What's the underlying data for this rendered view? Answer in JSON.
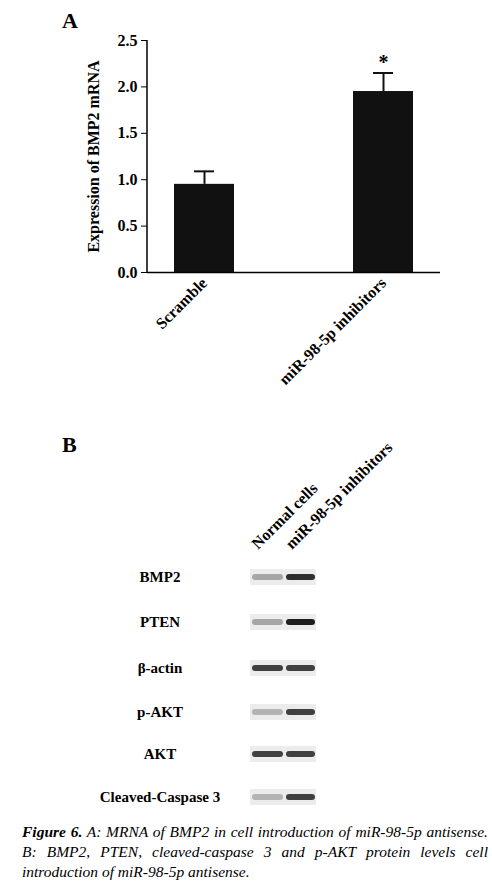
{
  "chart_data": {
    "type": "bar",
    "categories": [
      "Scramble",
      "miR-98-5p inhibitors"
    ],
    "values": [
      0.95,
      1.95
    ],
    "errors": [
      0.14,
      0.2
    ],
    "color": "#111111",
    "ylabel": "Expression of BMP2 mRNA",
    "ylim": [
      0,
      2.5
    ],
    "yticks": [
      {
        "value": 0,
        "label": "0.0"
      },
      {
        "value": 0.5,
        "label": "0.5"
      },
      {
        "value": 1,
        "label": "1.0"
      },
      {
        "value": 1.5,
        "label": "1.5"
      },
      {
        "value": 2,
        "label": "2.0"
      },
      {
        "value": 2.5,
        "label": "2.5"
      }
    ],
    "annotations": [
      {
        "category": "miR-98-5p inhibitors",
        "text": "*"
      }
    ]
  },
  "panel_labels": [
    "A",
    "B"
  ],
  "blot": {
    "lanes": [
      "Normal cells",
      "miR-98-5p inhibitors"
    ],
    "rows": [
      {
        "label": "BMP2",
        "intensity": [
          0.45,
          0.85
        ]
      },
      {
        "label": "PTEN",
        "intensity": [
          0.45,
          0.9
        ]
      },
      {
        "label": "β-actin",
        "intensity": [
          0.8,
          0.8
        ]
      },
      {
        "label": "p-AKT",
        "intensity": [
          0.4,
          0.8
        ]
      },
      {
        "label": "AKT",
        "intensity": [
          0.8,
          0.8
        ]
      },
      {
        "label": "Cleaved-Caspase 3",
        "intensity": [
          0.4,
          0.8
        ]
      }
    ]
  },
  "caption": {
    "label": "Figure 6.",
    "text": "A: MRNA of BMP2 in cell introduction of miR-98-5p antisense. B: BMP2, PTEN, cleaved-caspase 3 and p-AKT protein levels cell introduction of miR-98-5p antisense."
  }
}
